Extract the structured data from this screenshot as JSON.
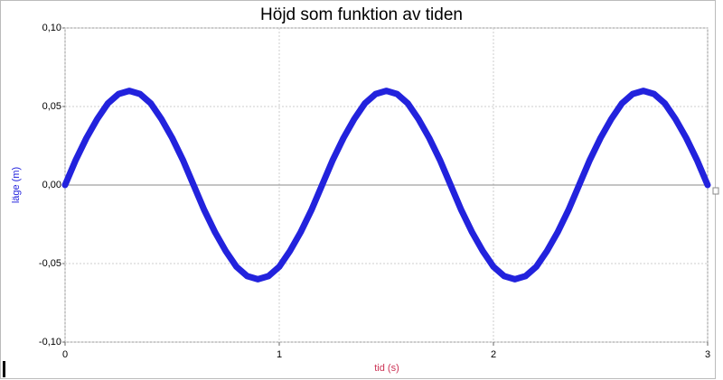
{
  "chart_data": {
    "type": "line",
    "title": "Höjd som funktion av tiden",
    "x_label": "tid (s)",
    "y_label": "läge (m)",
    "x": [
      0,
      0.05,
      0.1,
      0.15,
      0.2,
      0.25,
      0.3,
      0.35,
      0.4,
      0.45,
      0.5,
      0.55,
      0.6,
      0.65,
      0.7,
      0.75,
      0.8,
      0.85,
      0.9,
      0.95,
      1,
      1.05,
      1.1,
      1.15,
      1.2,
      1.25,
      1.3,
      1.35,
      1.4,
      1.45,
      1.5,
      1.55,
      1.6,
      1.65,
      1.7,
      1.75,
      1.8,
      1.85,
      1.9,
      1.95,
      2,
      2.05,
      2.1,
      2.15,
      2.2,
      2.25,
      2.3,
      2.35,
      2.4,
      2.45,
      2.5,
      2.55,
      2.6,
      2.65,
      2.7,
      2.75,
      2.8,
      2.85,
      2.9,
      2.95,
      3
    ],
    "series": [
      {
        "name": "läge",
        "color": "#2222dd",
        "values": [
          0,
          0.016,
          0.03,
          0.042,
          0.052,
          0.058,
          0.06,
          0.058,
          0.052,
          0.042,
          0.03,
          0.016,
          0,
          -0.016,
          -0.03,
          -0.042,
          -0.052,
          -0.058,
          -0.06,
          -0.058,
          -0.052,
          -0.042,
          -0.03,
          -0.016,
          0,
          0.016,
          0.03,
          0.042,
          0.052,
          0.058,
          0.06,
          0.058,
          0.052,
          0.042,
          0.03,
          0.016,
          0,
          -0.016,
          -0.03,
          -0.042,
          -0.052,
          -0.058,
          -0.06,
          -0.058,
          -0.052,
          -0.042,
          -0.03,
          -0.016,
          0,
          0.016,
          0.03,
          0.042,
          0.052,
          0.058,
          0.06,
          0.058,
          0.052,
          0.042,
          0.03,
          0.016,
          0
        ]
      }
    ],
    "xlim": [
      0,
      3
    ],
    "xticks": [
      0,
      1,
      2,
      3
    ],
    "ylim": [
      -0.1,
      0.1
    ],
    "yticks": [
      {
        "value": -0.1,
        "label": "-0,10"
      },
      {
        "value": -0.05,
        "label": "-0,05"
      },
      {
        "value": 0,
        "label": "0,00"
      },
      {
        "value": 0.05,
        "label": "0,05"
      },
      {
        "value": 0.1,
        "label": "0,10"
      }
    ],
    "grid": true
  }
}
